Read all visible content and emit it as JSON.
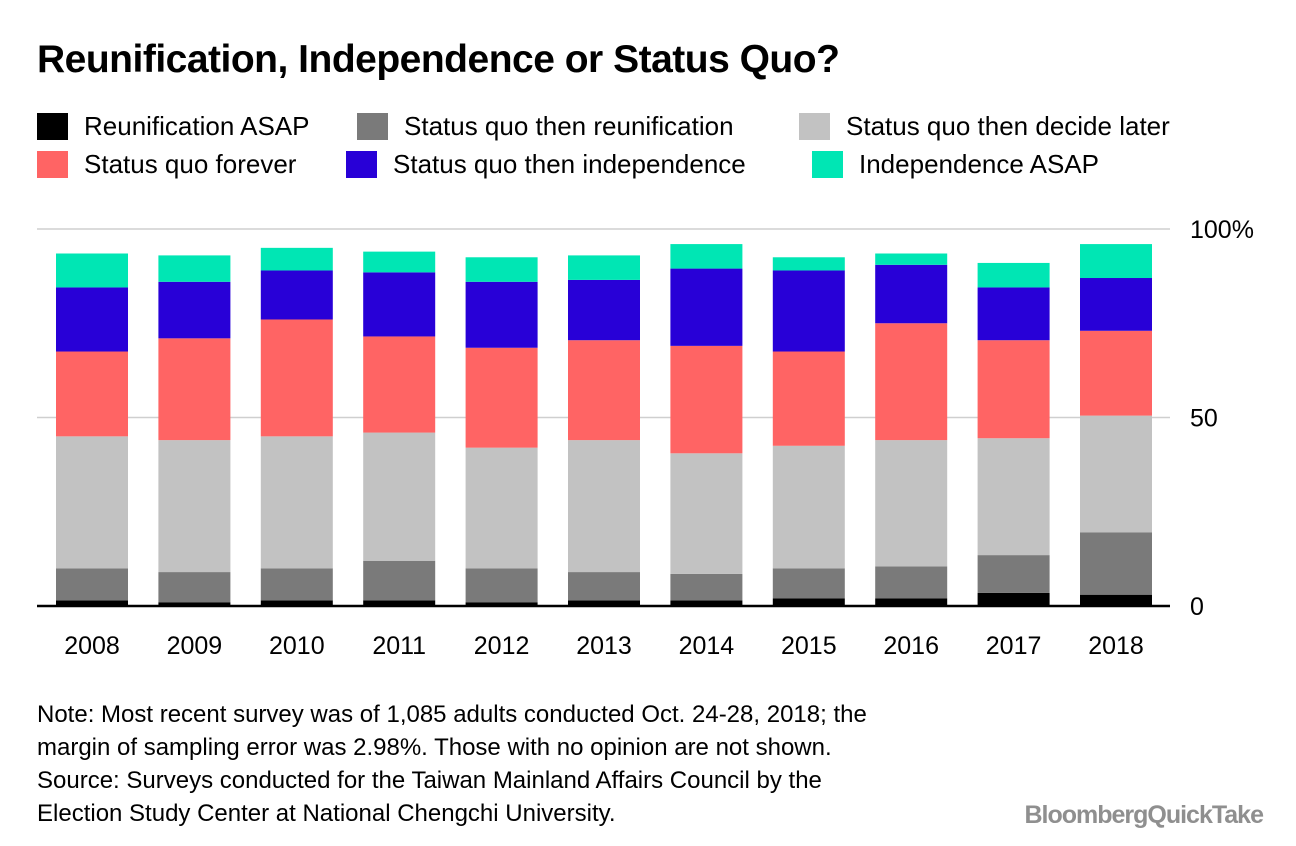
{
  "title": "Reunification, Independence or Status Quo?",
  "legend": [
    {
      "label": "Reunification ASAP",
      "color": "#000000"
    },
    {
      "label": "Status quo then reunification",
      "color": "#7a7a7a"
    },
    {
      "label": "Status quo then decide later",
      "color": "#c2c2c2"
    },
    {
      "label": "Status quo forever",
      "color": "#ff6464"
    },
    {
      "label": "Status quo then independence",
      "color": "#2800d7"
    },
    {
      "label": "Independence ASAP",
      "color": "#00e6b4"
    }
  ],
  "chart_data": {
    "type": "bar",
    "stacked": true,
    "categories": [
      "2008",
      "2009",
      "2010",
      "2011",
      "2012",
      "2013",
      "2014",
      "2015",
      "2016",
      "2017",
      "2018"
    ],
    "series": [
      {
        "name": "Reunification ASAP",
        "color": "#000000",
        "values": [
          1.5,
          1.0,
          1.5,
          1.5,
          1.0,
          1.5,
          1.5,
          2.0,
          2.0,
          3.5,
          3.0
        ]
      },
      {
        "name": "Status quo then reunification",
        "color": "#7a7a7a",
        "values": [
          8.5,
          8.0,
          8.5,
          10.5,
          9.0,
          7.5,
          7.0,
          8.0,
          8.5,
          10.0,
          16.5
        ]
      },
      {
        "name": "Status quo then decide later",
        "color": "#c2c2c2",
        "values": [
          35.0,
          35.0,
          35.0,
          34.0,
          32.0,
          35.0,
          32.0,
          32.5,
          33.5,
          31.0,
          31.0
        ]
      },
      {
        "name": "Status quo forever",
        "color": "#ff6464",
        "values": [
          22.5,
          27.0,
          31.0,
          25.5,
          26.5,
          26.5,
          28.5,
          25.0,
          31.0,
          26.0,
          22.5
        ]
      },
      {
        "name": "Status quo then independence",
        "color": "#2800d7",
        "values": [
          17.0,
          15.0,
          13.0,
          17.0,
          17.5,
          16.0,
          20.5,
          21.5,
          15.5,
          14.0,
          14.0
        ]
      },
      {
        "name": "Independence ASAP",
        "color": "#00e6b4",
        "values": [
          9.0,
          7.0,
          6.0,
          5.5,
          6.5,
          6.5,
          6.5,
          3.5,
          3.0,
          6.5,
          9.0
        ]
      }
    ],
    "y_ticks": [
      "0",
      "50",
      "100%"
    ],
    "y_tick_values": [
      0,
      50,
      100
    ],
    "ylim": [
      0,
      100
    ],
    "grid": true,
    "legend_position": "top"
  },
  "notes": [
    "Note: Most recent survey was of 1,085 adults conducted Oct. 24-28, 2018; the",
    "margin of sampling error was 2.98%. Those with no opinion are not shown.",
    "Source: Surveys conducted for the Taiwan Mainland Affairs Council by the",
    "Election Study Center at National Chengchi University."
  ],
  "brand": {
    "part1": "Bloomberg",
    "part2": "QuickTake"
  }
}
